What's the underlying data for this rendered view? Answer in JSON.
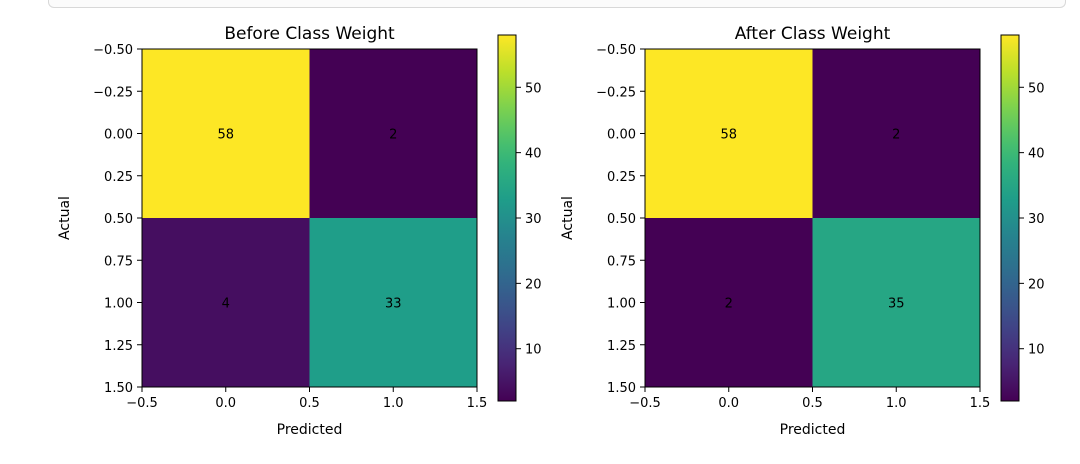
{
  "chart_data": [
    {
      "type": "heatmap",
      "title": "Before Class Weight",
      "xlabel": "Predicted",
      "ylabel": "Actual",
      "matrix": [
        [
          58,
          2
        ],
        [
          4,
          33
        ]
      ],
      "xticks": [
        "−0.5",
        "0.0",
        "0.5",
        "1.0",
        "1.5"
      ],
      "yticks": [
        "−0.50",
        "−0.25",
        "0.00",
        "0.25",
        "0.50",
        "0.75",
        "1.00",
        "1.25",
        "1.50"
      ],
      "xlim": [
        -0.5,
        1.5
      ],
      "ylim": [
        1.5,
        -0.5
      ],
      "colormap": "viridis",
      "colorbar": {
        "range": [
          2,
          58
        ],
        "ticks": [
          10,
          20,
          30,
          40,
          50
        ]
      },
      "grid": false
    },
    {
      "type": "heatmap",
      "title": "After Class Weight",
      "xlabel": "Predicted",
      "ylabel": "Actual",
      "matrix": [
        [
          58,
          2
        ],
        [
          2,
          35
        ]
      ],
      "xticks": [
        "−0.5",
        "0.0",
        "0.5",
        "1.0",
        "1.5"
      ],
      "yticks": [
        "−0.50",
        "−0.25",
        "0.00",
        "0.25",
        "0.50",
        "0.75",
        "1.00",
        "1.25",
        "1.50"
      ],
      "xlim": [
        -0.5,
        1.5
      ],
      "ylim": [
        1.5,
        -0.5
      ],
      "colormap": "viridis",
      "colorbar": {
        "range": [
          2,
          58
        ],
        "ticks": [
          10,
          20,
          30,
          40,
          50
        ]
      },
      "grid": false
    }
  ]
}
